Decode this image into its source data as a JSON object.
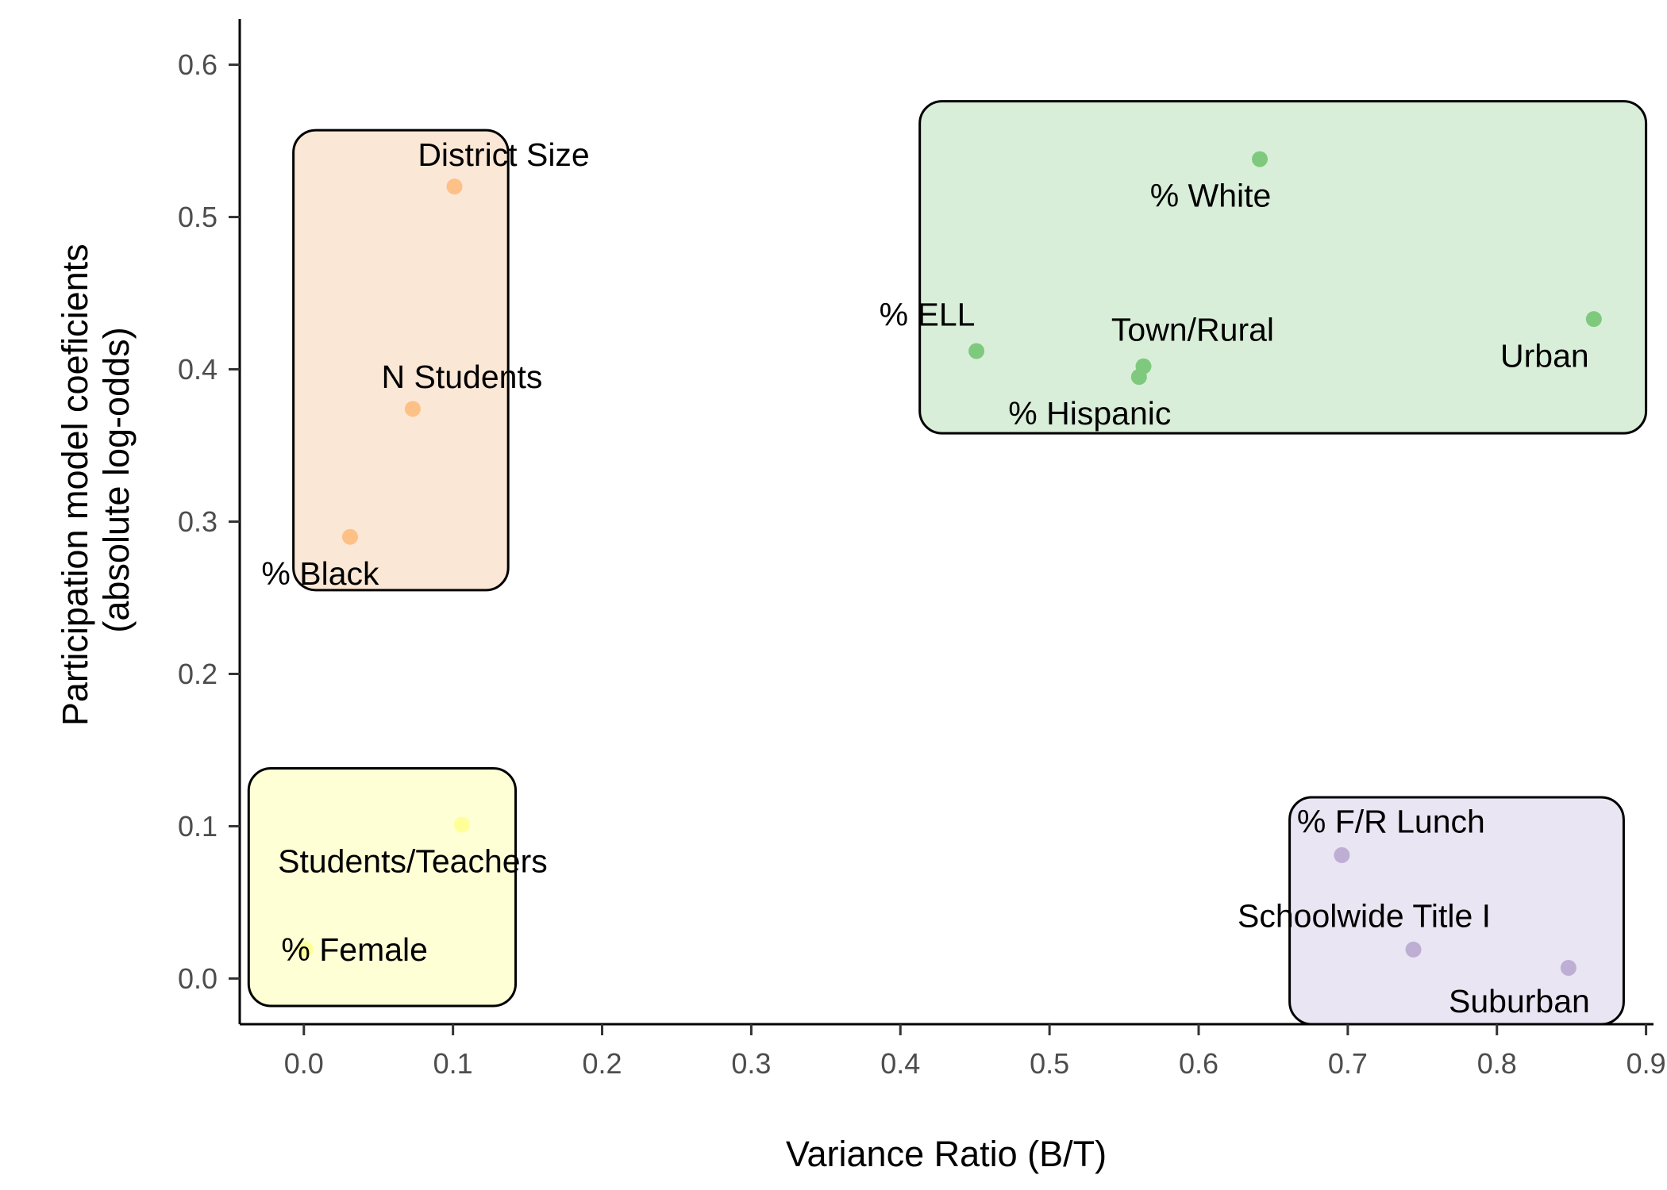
{
  "chart_data": {
    "type": "scatter",
    "title": "",
    "xlabel": "Variance Ratio (B/T)",
    "ylabel_lines": [
      "Participation model coeficients",
      "(absolute log-odds)"
    ],
    "xlim": [
      -0.043,
      0.905
    ],
    "ylim": [
      -0.03,
      0.63
    ],
    "x_ticks": [
      0.0,
      0.1,
      0.2,
      0.3,
      0.4,
      0.5,
      0.6,
      0.7,
      0.8,
      0.9
    ],
    "x_tick_labels": [
      "0.0",
      "0.1",
      "0.2",
      "0.3",
      "0.4",
      "0.5",
      "0.6",
      "0.7",
      "0.8",
      "0.9"
    ],
    "y_ticks": [
      0.0,
      0.1,
      0.2,
      0.3,
      0.4,
      0.5,
      0.6
    ],
    "y_tick_labels": [
      "0.0",
      "0.1",
      "0.2",
      "0.3",
      "0.4",
      "0.5",
      "0.6"
    ],
    "grid": false,
    "legend": "none",
    "groups": [
      {
        "fill": "#fbe7d5",
        "point_color": "#fdc086",
        "box": {
          "x0": -0.007,
          "x1": 0.137,
          "y0": 0.255,
          "y1": 0.557
        },
        "points": [
          {
            "label": "District Size",
            "x": 0.101,
            "y": 0.52,
            "label_x": 0.134,
            "label_y": 0.541
          },
          {
            "label": "N Students",
            "x": 0.073,
            "y": 0.374,
            "label_x": 0.106,
            "label_y": 0.395
          },
          {
            "label": "% Black",
            "x": 0.031,
            "y": 0.29,
            "label_x": 0.011,
            "label_y": 0.266
          }
        ]
      },
      {
        "fill": "#d9eed9",
        "point_color": "#7fc97f",
        "box": {
          "x0": 0.413,
          "x1": 0.9,
          "y0": 0.358,
          "y1": 0.576
        },
        "points": [
          {
            "label": "% White",
            "x": 0.641,
            "y": 0.538,
            "label_x": 0.608,
            "label_y": 0.514
          },
          {
            "label": "% ELL",
            "x": 0.451,
            "y": 0.412,
            "label_x": 0.418,
            "label_y": 0.436
          },
          {
            "label": "Town/Rural",
            "x": 0.563,
            "y": 0.402,
            "label_x": 0.596,
            "label_y": 0.426
          },
          {
            "label": "% Hispanic",
            "x": 0.56,
            "y": 0.395,
            "label_x": 0.527,
            "label_y": 0.371
          },
          {
            "label": "Urban",
            "x": 0.865,
            "y": 0.433,
            "label_x": 0.832,
            "label_y": 0.409
          }
        ]
      },
      {
        "fill": "#ffffd6",
        "point_color": "#ffff99",
        "box": {
          "x0": -0.037,
          "x1": 0.142,
          "y0": -0.018,
          "y1": 0.138
        },
        "points": [
          {
            "label": "Students/Teachers",
            "x": 0.106,
            "y": 0.101,
            "label_x": 0.073,
            "label_y": 0.077
          },
          {
            "label": "% Female",
            "x": 0.001,
            "y": 0.019,
            "label_x": 0.034,
            "label_y": 0.019
          }
        ]
      },
      {
        "fill": "#e9e5f2",
        "point_color": "#beaed4",
        "box": {
          "x0": 0.661,
          "x1": 0.885,
          "y0": -0.03,
          "y1": 0.119
        },
        "points": [
          {
            "label": "% F/R Lunch",
            "x": 0.696,
            "y": 0.081,
            "label_x": 0.729,
            "label_y": 0.103
          },
          {
            "label": "Schoolwide Title I",
            "x": 0.744,
            "y": 0.019,
            "label_x": 0.711,
            "label_y": 0.041
          },
          {
            "label": "Suburban",
            "x": 0.848,
            "y": 0.007,
            "label_x": 0.815,
            "label_y": -0.015
          }
        ]
      }
    ]
  }
}
